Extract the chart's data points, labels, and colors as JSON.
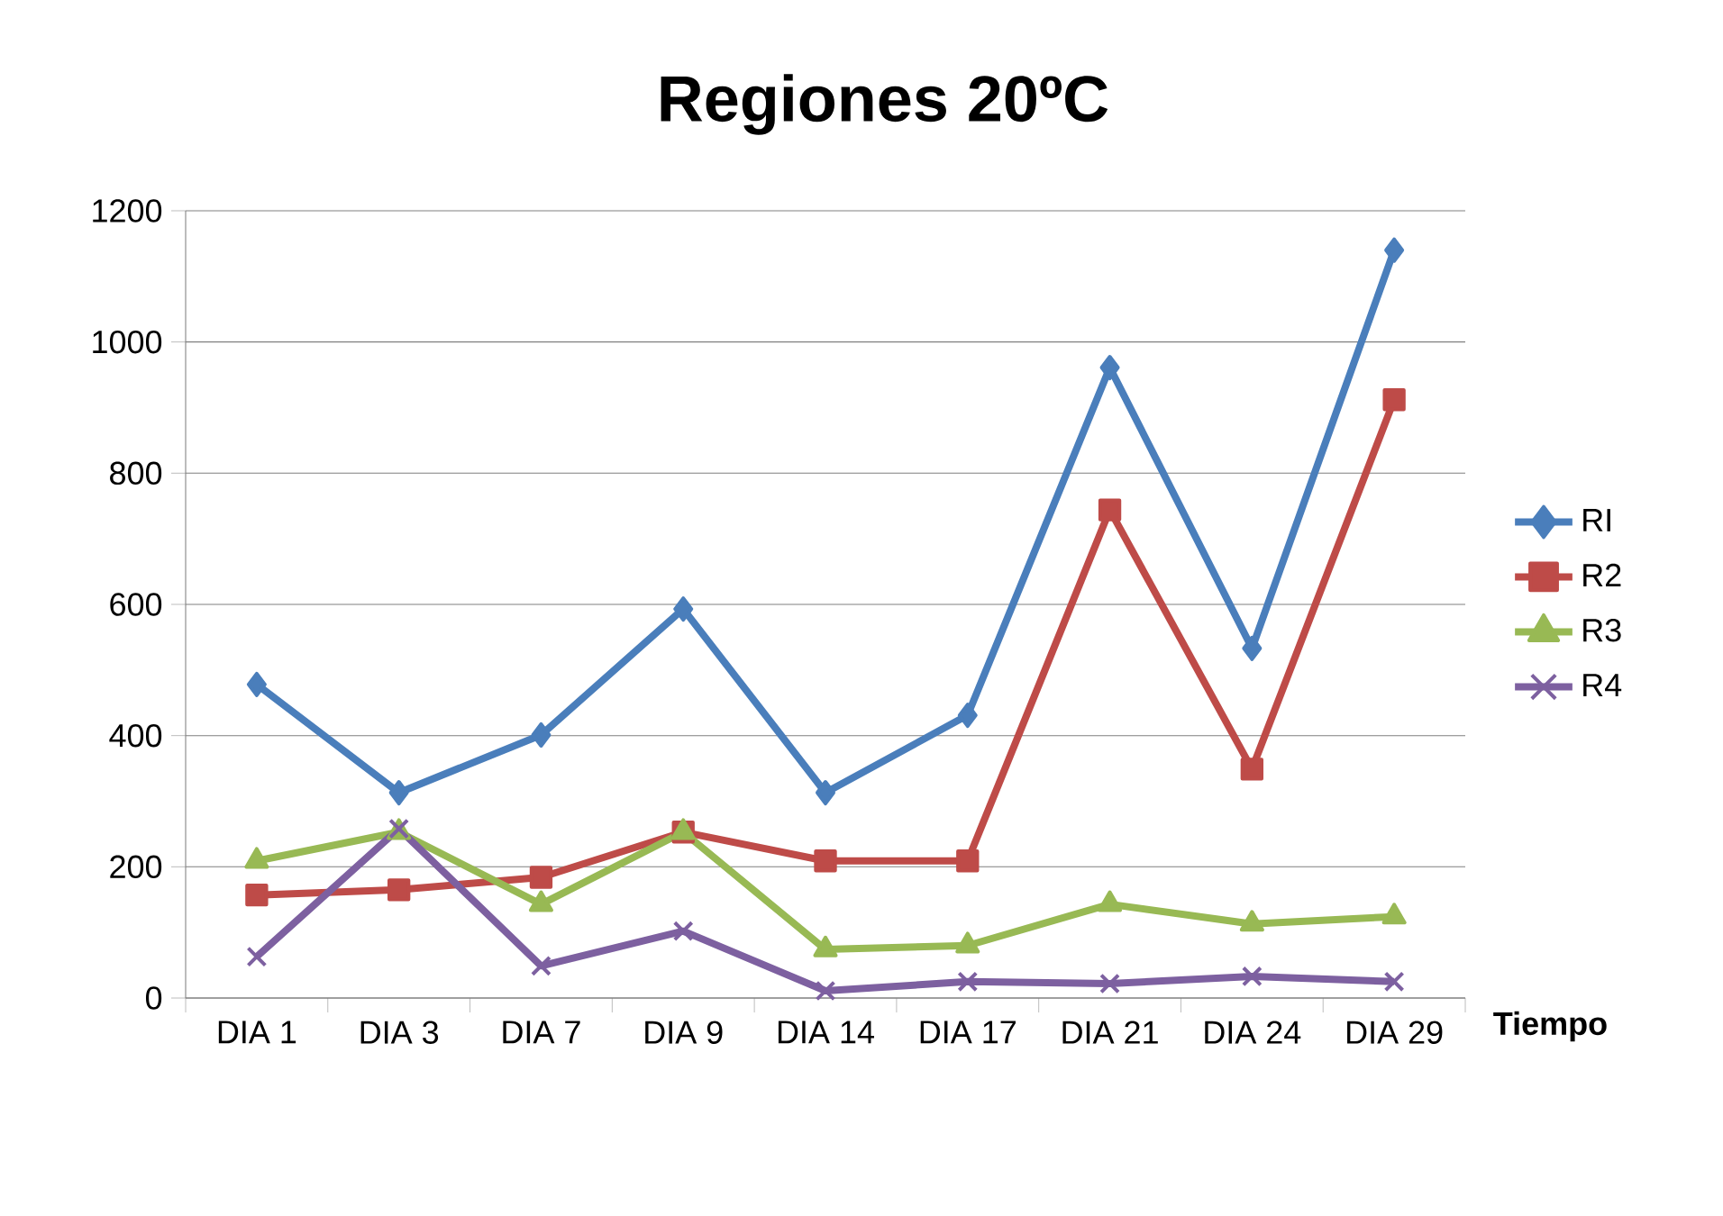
{
  "chart_data": {
    "type": "line",
    "title": "Regiones 20ºC",
    "xlabel": "Tiempo",
    "categories": [
      "DIA 1",
      "DIA 3",
      "DIA 7",
      "DIA 9",
      "DIA 14",
      "DIA 17",
      "DIA 21",
      "DIA 24",
      "DIA 29"
    ],
    "series": [
      {
        "name": "RI",
        "color": "#4a7ebb",
        "marker": "diamond",
        "values": [
          478,
          313,
          401,
          593,
          313,
          431,
          961,
          533,
          1140
        ]
      },
      {
        "name": "R2",
        "color": "#be4b48",
        "marker": "square",
        "values": [
          157,
          165,
          184,
          253,
          209,
          209,
          744,
          349,
          912
        ]
      },
      {
        "name": "R3",
        "color": "#98b954",
        "marker": "triangle",
        "values": [
          209,
          253,
          143,
          253,
          74,
          80,
          143,
          113,
          124
        ]
      },
      {
        "name": "R4",
        "color": "#7d60a0",
        "marker": "cross",
        "values": [
          63,
          258,
          49,
          102,
          11,
          25,
          22,
          33,
          25
        ]
      }
    ],
    "ylim": [
      0,
      1200
    ],
    "yticks": [
      0,
      200,
      400,
      600,
      800,
      1000,
      1200
    ],
    "grid": "y",
    "legend": "right"
  }
}
